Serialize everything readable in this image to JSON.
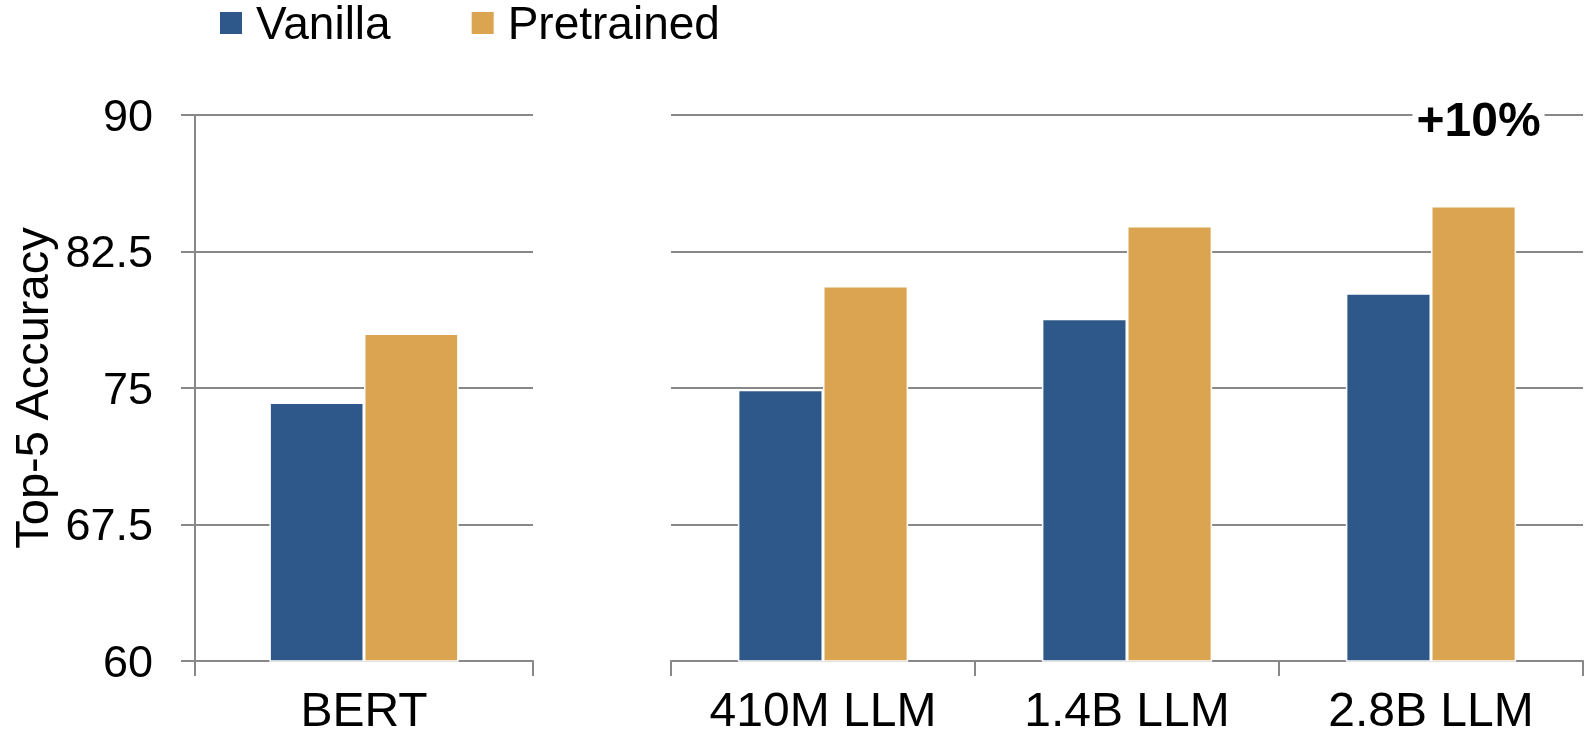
{
  "chart_data": [
    {
      "type": "bar",
      "categories": [
        "BERT"
      ],
      "series": [
        {
          "name": "Vanilla",
          "color": "#2e5889",
          "values": [
            74.2
          ]
        },
        {
          "name": "Pretrained",
          "color": "#dba450",
          "values": [
            78.0
          ]
        }
      ],
      "ylabel": "Top-5 Accuracy",
      "ylim": [
        60,
        90
      ],
      "yticks": [
        60,
        67.5,
        75,
        82.5,
        90
      ],
      "grid": "y",
      "legend": "top"
    },
    {
      "type": "bar",
      "categories": [
        "410M LLM",
        "1.4B LLM",
        "2.8B LLM"
      ],
      "series": [
        {
          "color": "#2e5889",
          "values": [
            74.9,
            78.8,
            80.2
          ]
        },
        {
          "color": "#dba450",
          "values": [
            80.6,
            83.9,
            85.0
          ]
        }
      ],
      "ylim": [
        60,
        90
      ],
      "yticks": [
        60,
        67.5,
        75,
        82.5,
        90
      ],
      "grid": "y",
      "tick_labels": "x",
      "annotations": [
        "+10%"
      ]
    }
  ]
}
